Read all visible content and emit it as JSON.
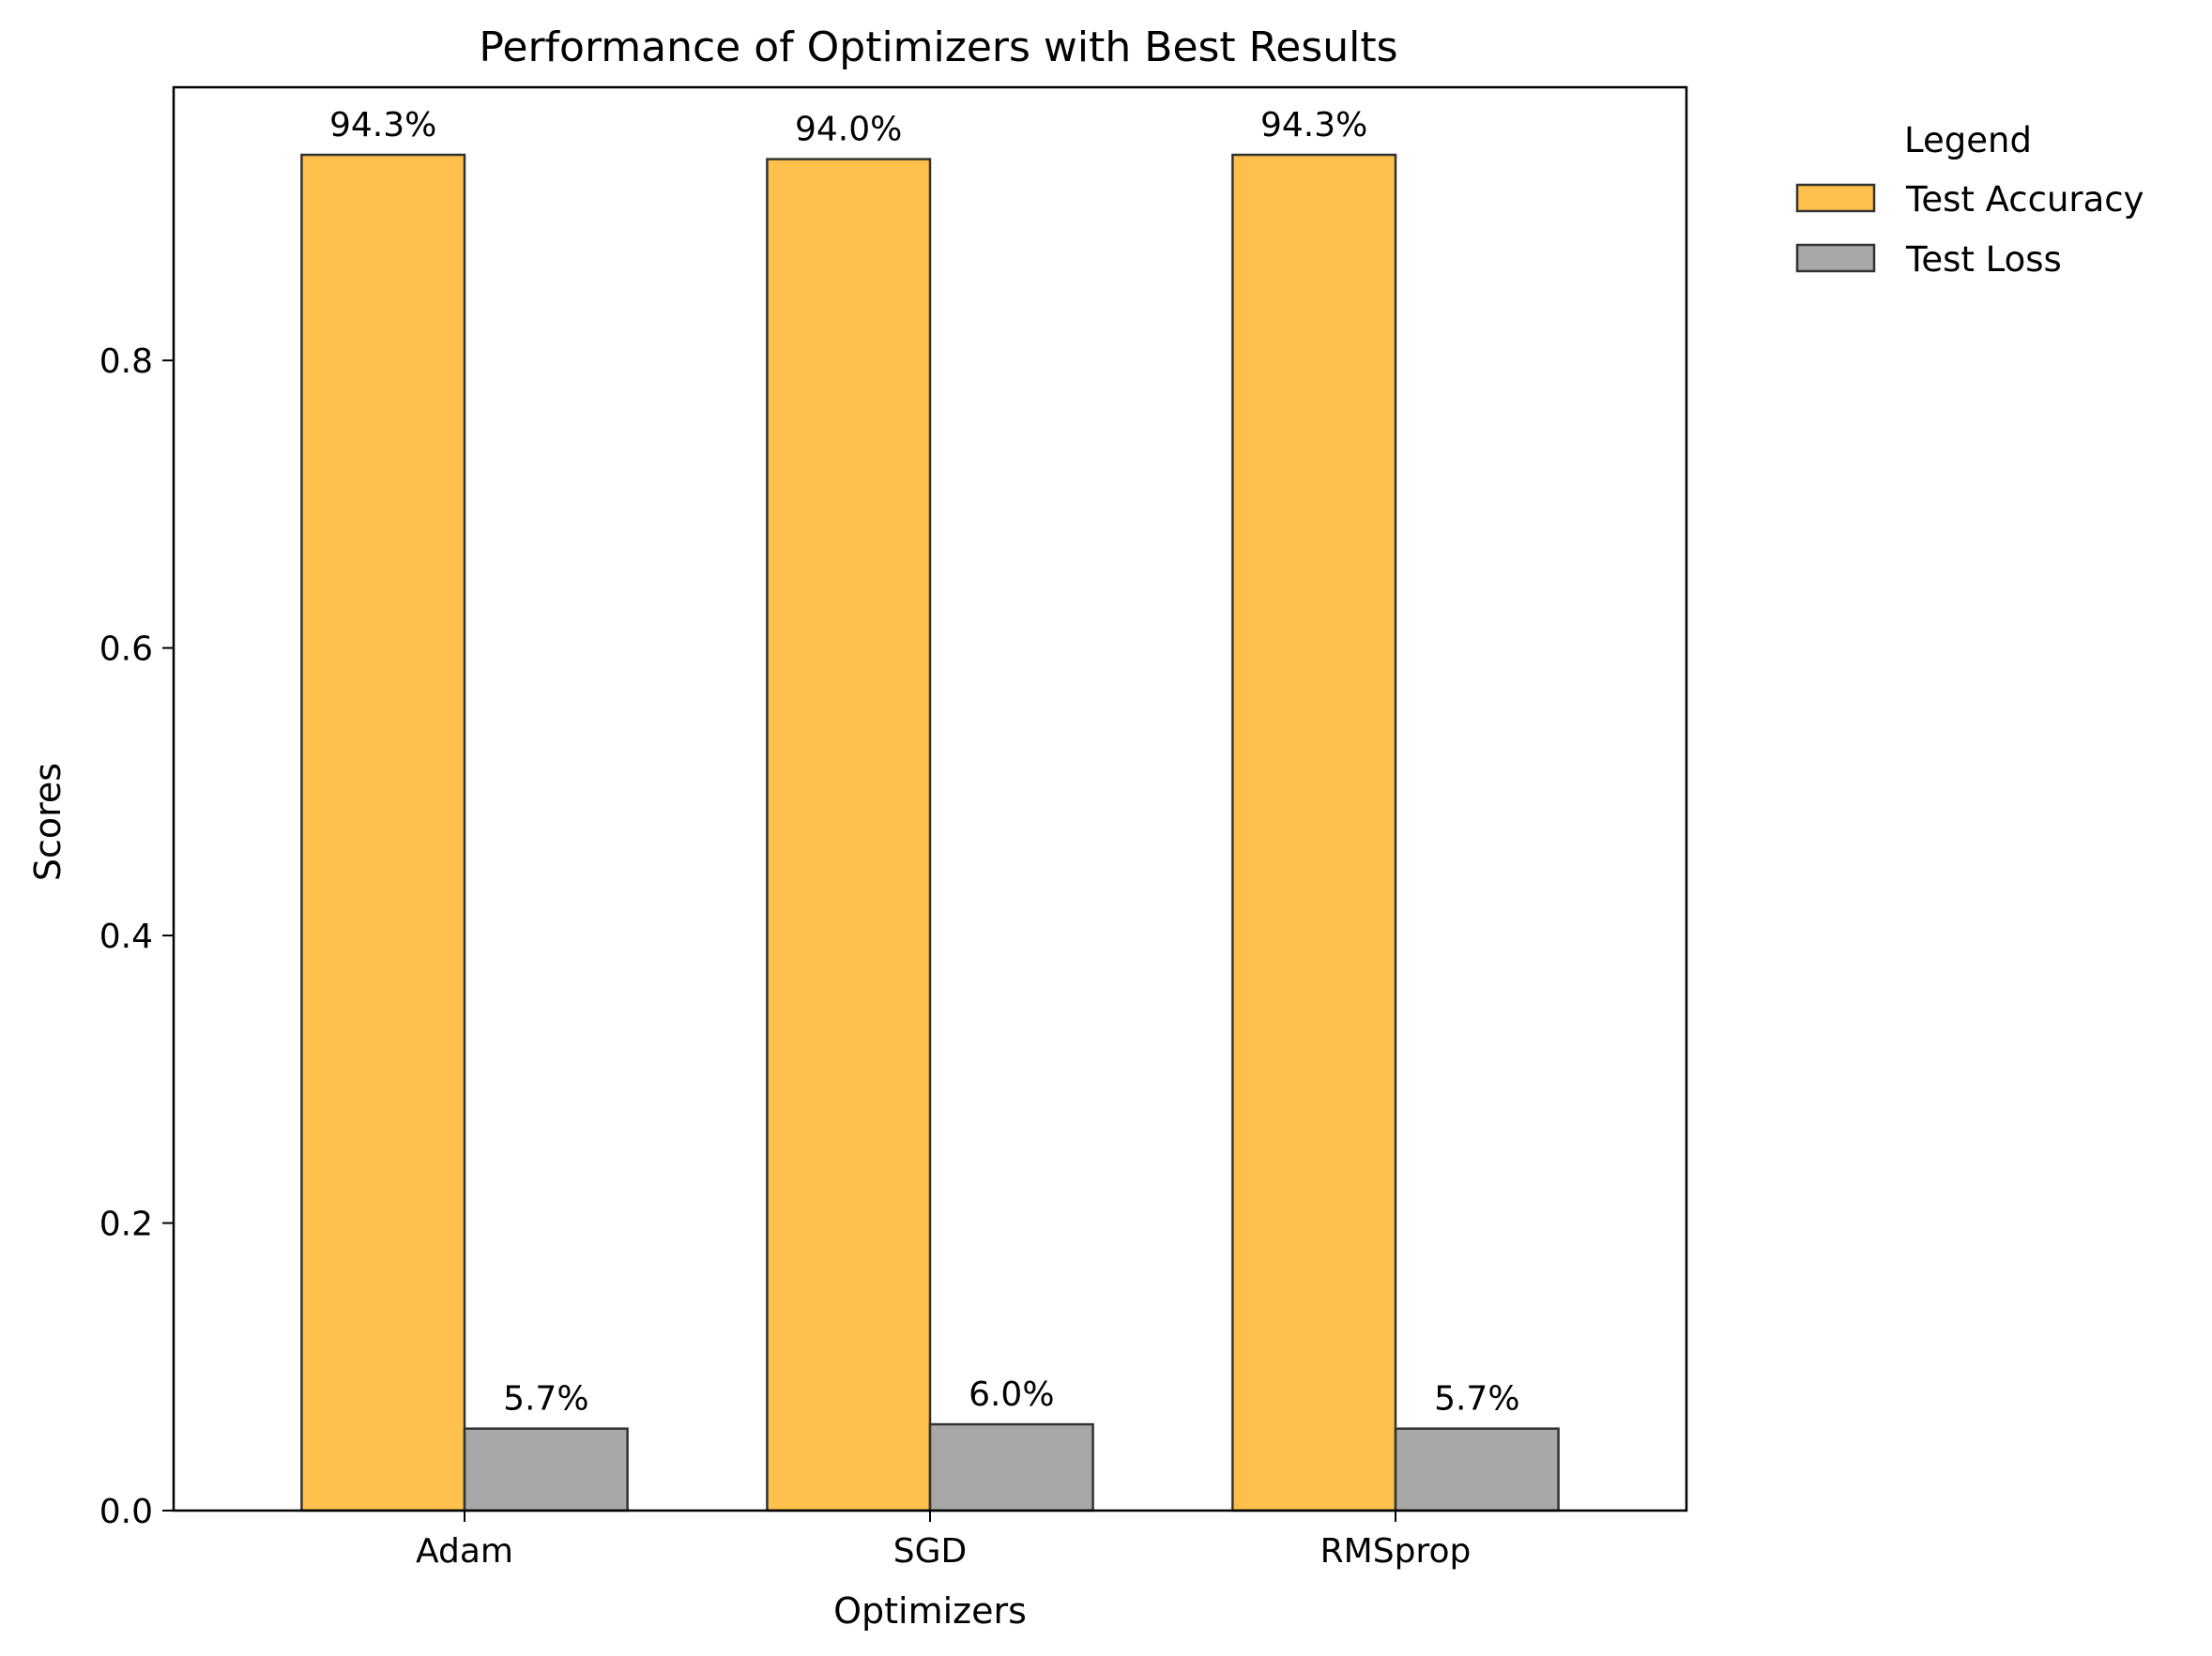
{
  "chart_data": {
    "type": "bar",
    "title": "Performance of Optimizers with Best Results",
    "xlabel": "Optimizers",
    "ylabel": "Scores",
    "categories": [
      "Adam",
      "SGD",
      "RMSprop"
    ],
    "series": [
      {
        "name": "Test Accuracy",
        "values": [
          0.943,
          0.94,
          0.943
        ],
        "labels": [
          "94.3%",
          "94.0%",
          "94.3%"
        ],
        "color": "#ffb62d"
      },
      {
        "name": "Test Loss",
        "values": [
          0.057,
          0.06,
          0.057
        ],
        "labels": [
          "5.7%",
          "6.0%",
          "5.7%"
        ],
        "color": "#999999"
      }
    ],
    "ylim": [
      0,
      0.99
    ],
    "yticks": [
      0.0,
      0.2,
      0.4,
      0.6,
      0.8
    ],
    "ytick_labels": [
      "0.0",
      "0.2",
      "0.4",
      "0.6",
      "0.8"
    ],
    "grid": false,
    "legend": {
      "title": "Legend",
      "placement": "outside-right-top"
    }
  }
}
